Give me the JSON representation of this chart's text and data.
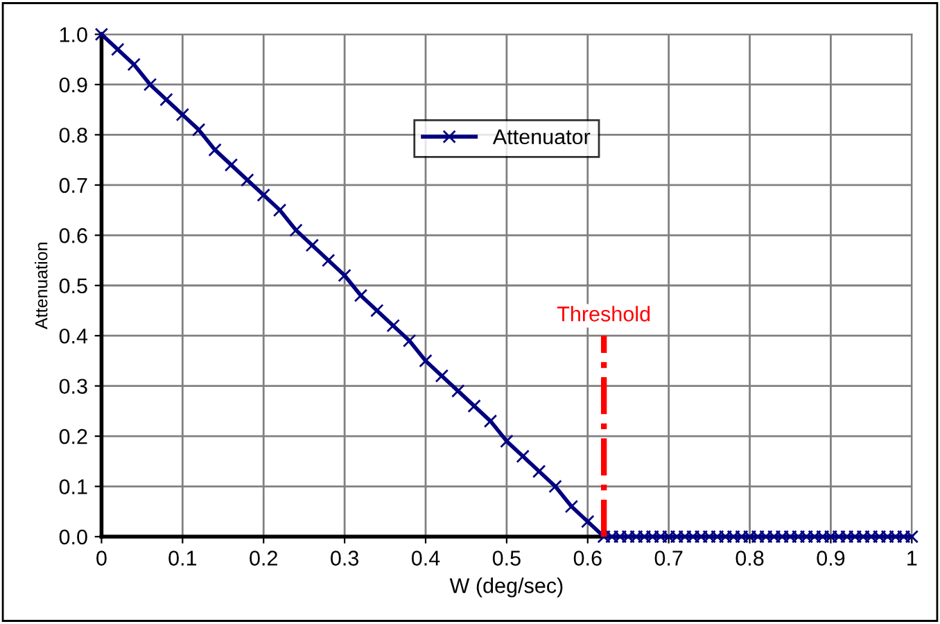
{
  "chart_data": {
    "type": "line",
    "xlabel": "W (deg/sec)",
    "ylabel": "Attenuation",
    "series": [
      {
        "name": "Attenuator",
        "color": "#000080",
        "marker": "cross",
        "line_style": "solid",
        "x": [
          0,
          0.02,
          0.04,
          0.06,
          0.08,
          0.1,
          0.12,
          0.14,
          0.16,
          0.18,
          0.2,
          0.22,
          0.24,
          0.26,
          0.28,
          0.3,
          0.32,
          0.34,
          0.36,
          0.38,
          0.4,
          0.42,
          0.44,
          0.46,
          0.48,
          0.5,
          0.52,
          0.54,
          0.56,
          0.58,
          0.6,
          0.62,
          0.63,
          0.64,
          0.65,
          0.66,
          0.67,
          0.68,
          0.69,
          0.7,
          0.71,
          0.72,
          0.73,
          0.74,
          0.75,
          0.76,
          0.77,
          0.78,
          0.79,
          0.8,
          0.81,
          0.82,
          0.83,
          0.84,
          0.85,
          0.86,
          0.87,
          0.88,
          0.89,
          0.9,
          0.91,
          0.92,
          0.93,
          0.94,
          0.95,
          0.96,
          0.97,
          0.98,
          0.99,
          1.0
        ],
        "values": [
          1,
          0.97,
          0.94,
          0.9,
          0.87,
          0.84,
          0.81,
          0.77,
          0.74,
          0.71,
          0.68,
          0.65,
          0.61,
          0.58,
          0.55,
          0.52,
          0.48,
          0.45,
          0.42,
          0.39,
          0.35,
          0.32,
          0.29,
          0.26,
          0.23,
          0.19,
          0.16,
          0.13,
          0.1,
          0.06,
          0.03,
          0,
          0,
          0,
          0,
          0,
          0,
          0,
          0,
          0,
          0,
          0,
          0,
          0,
          0,
          0,
          0,
          0,
          0,
          0,
          0,
          0,
          0,
          0,
          0,
          0,
          0,
          0,
          0,
          0,
          0,
          0,
          0,
          0,
          0,
          0,
          0,
          0,
          0,
          0
        ]
      }
    ],
    "xlim": [
      0,
      1
    ],
    "xticks": [
      0,
      {
        "value": 0.1,
        "label": "0.1"
      },
      {
        "value": 0.2,
        "label": "0.2"
      },
      {
        "value": 0.3,
        "label": "0.3"
      },
      {
        "value": 0.4,
        "label": "0.4"
      },
      {
        "value": 0.5,
        "label": "0.5"
      },
      {
        "value": 0.6,
        "label": "0.6"
      },
      {
        "value": 0.7,
        "label": "0.7"
      },
      {
        "value": 0.8,
        "label": "0.8"
      },
      {
        "value": 0.9,
        "label": "0.9"
      },
      1
    ],
    "ylim": [
      0,
      1
    ],
    "yticks": [
      {
        "value": 0,
        "label": "0.0"
      },
      {
        "value": 0.1,
        "label": "0.1"
      },
      {
        "value": 0.2,
        "label": "0.2"
      },
      {
        "value": 0.3,
        "label": "0.3"
      },
      {
        "value": 0.4,
        "label": "0.4"
      },
      {
        "value": 0.5,
        "label": "0.5"
      },
      {
        "value": 0.6,
        "label": "0.6"
      },
      {
        "value": 0.7,
        "label": "0.7"
      },
      {
        "value": 0.8,
        "label": "0.8"
      },
      {
        "value": 0.9,
        "label": "0.9"
      },
      {
        "value": 1,
        "label": "1.0"
      }
    ],
    "ref_lines": [
      {
        "axis": "x",
        "value": 0.62,
        "label": "Threshold",
        "color": "#ff0000",
        "line_style": "dashdot"
      }
    ],
    "grid": true,
    "legend": "top center"
  }
}
